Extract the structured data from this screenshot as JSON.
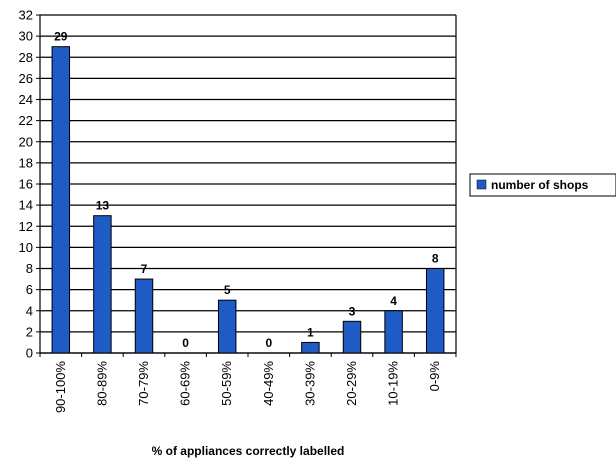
{
  "chart_data": {
    "type": "bar",
    "categories": [
      "90-100%",
      "80-89%",
      "70-79%",
      "60-69%",
      "50-59%",
      "40-49%",
      "30-39%",
      "20-29%",
      "10-19%",
      "0-9%"
    ],
    "series": [
      {
        "name": "number of shops",
        "values": [
          29,
          13,
          7,
          0,
          5,
          0,
          1,
          3,
          4,
          8
        ],
        "color": "#1f5bc4"
      }
    ],
    "xlabel": "% of appliances correctly labelled",
    "ylabel": "",
    "ylim": [
      0,
      32
    ],
    "ytick_step": 2,
    "grid": true,
    "legend": "right",
    "data_labels": true
  }
}
